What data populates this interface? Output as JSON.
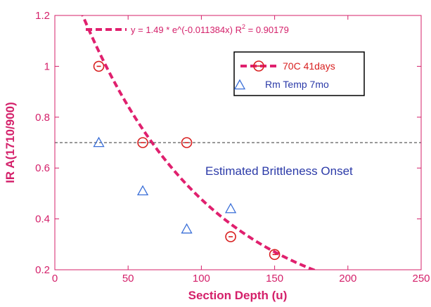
{
  "chart_data": {
    "type": "scatter",
    "xlabel": "Section Depth (u)",
    "ylabel": "IR A(1710/900)",
    "xlim": [
      0,
      250
    ],
    "ylim": [
      0.2,
      1.2
    ],
    "xticks": [
      "0",
      "50",
      "100",
      "150",
      "200",
      "250"
    ],
    "yticks": [
      "0.2",
      "0.4",
      "0.6",
      "0.8",
      "1",
      "1.2"
    ],
    "grid": false,
    "legend_position": "upper-right",
    "fit": {
      "label": "y = 1.49 * e^(-0.011384x)   R",
      "r2_sup": "2",
      "r2_value": " = 0.90179",
      "a": 1.49,
      "b": -0.011384,
      "color": "#e0206e"
    },
    "reference_line": {
      "y": 0.7,
      "color": "#333333"
    },
    "annotation": "Estimated Brittleness Onset",
    "series": [
      {
        "name": "70C 41days",
        "marker": "circle",
        "color": "#d82020",
        "x": [
          30,
          60,
          90,
          120,
          150
        ],
        "y": [
          1.0,
          0.7,
          0.7,
          0.33,
          0.26
        ]
      },
      {
        "name": "Rm Temp 7mo",
        "marker": "triangle",
        "color": "#3a6fd8",
        "x": [
          30,
          60,
          90,
          120
        ],
        "y": [
          0.7,
          0.51,
          0.36,
          0.44
        ]
      }
    ]
  }
}
